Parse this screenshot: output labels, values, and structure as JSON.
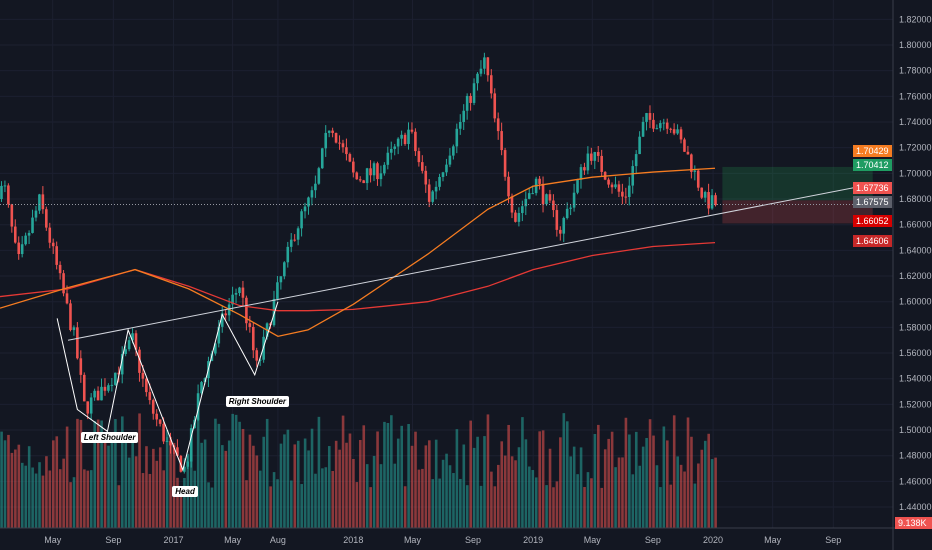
{
  "chart_data": {
    "type": "candlestick",
    "interval": "weekly",
    "price_axis": {
      "min": 1.44,
      "max": 1.82,
      "step": 0.02,
      "ticks": [
        "1.82000",
        "1.80000",
        "1.78000",
        "1.76000",
        "1.74000",
        "1.72000",
        "1.70000",
        "1.68000",
        "1.66000",
        "1.64000",
        "1.62000",
        "1.60000",
        "1.58000",
        "1.56000",
        "1.54000",
        "1.52000",
        "1.50000",
        "1.48000",
        "1.46000",
        "1.44000"
      ]
    },
    "time_axis": {
      "ticks": [
        {
          "label": "May",
          "date": "2016-05-01"
        },
        {
          "label": "Sep",
          "date": "2016-09-01"
        },
        {
          "label": "2017",
          "date": "2017-01-01"
        },
        {
          "label": "May",
          "date": "2017-05-01"
        },
        {
          "label": "Aug",
          "date": "2017-08-01"
        },
        {
          "label": "2018",
          "date": "2018-01-01"
        },
        {
          "label": "May",
          "date": "2018-05-01"
        },
        {
          "label": "Sep",
          "date": "2018-09-01"
        },
        {
          "label": "2019",
          "date": "2019-01-01"
        },
        {
          "label": "May",
          "date": "2019-05-01"
        },
        {
          "label": "Sep",
          "date": "2019-09-01"
        },
        {
          "label": "2020",
          "date": "2020-01-01"
        },
        {
          "label": "May",
          "date": "2020-05-01"
        },
        {
          "label": "Sep",
          "date": "2020-09-01"
        }
      ]
    },
    "close_path": [
      [
        "2016-01-25",
        1.687
      ],
      [
        "2016-02-20",
        1.629
      ],
      [
        "2016-04-05",
        1.679
      ],
      [
        "2016-06-15",
        1.57
      ],
      [
        "2016-07-05",
        1.516
      ],
      [
        "2016-09-10",
        1.547
      ],
      [
        "2016-10-10",
        1.57
      ],
      [
        "2016-11-10",
        1.523
      ],
      [
        "2016-12-25",
        1.484
      ],
      [
        "2017-01-25",
        1.469
      ],
      [
        "2017-02-25",
        1.535
      ],
      [
        "2017-04-15",
        1.59
      ],
      [
        "2017-05-15",
        1.613
      ],
      [
        "2017-06-20",
        1.547
      ],
      [
        "2017-07-25",
        1.601
      ],
      [
        "2017-09-05",
        1.656
      ],
      [
        "2017-10-15",
        1.687
      ],
      [
        "2017-11-15",
        1.741
      ],
      [
        "2018-01-05",
        1.695
      ],
      [
        "2018-02-25",
        1.703
      ],
      [
        "2018-04-25",
        1.734
      ],
      [
        "2018-06-05",
        1.679
      ],
      [
        "2018-08-15",
        1.749
      ],
      [
        "2018-09-25",
        1.788
      ],
      [
        "2018-10-15",
        1.741
      ],
      [
        "2018-11-25",
        1.664
      ],
      [
        "2019-01-05",
        1.695
      ],
      [
        "2019-02-25",
        1.656
      ],
      [
        "2019-04-25",
        1.718
      ],
      [
        "2019-07-05",
        1.679
      ],
      [
        "2019-08-15",
        1.741
      ],
      [
        "2019-10-05",
        1.741
      ],
      [
        "2019-11-15",
        1.71
      ],
      [
        "2019-12-15",
        1.679
      ],
      [
        "2020-01-05",
        1.676
      ]
    ],
    "ma_fast": [
      [
        "2016-01-15",
        1.595
      ],
      [
        "2016-06-01",
        1.611
      ],
      [
        "2016-10-15",
        1.625
      ],
      [
        "2017-02-01",
        1.61
      ],
      [
        "2017-05-15",
        1.59
      ],
      [
        "2017-08-01",
        1.573
      ],
      [
        "2017-10-01",
        1.578
      ],
      [
        "2018-01-01",
        1.598
      ],
      [
        "2018-06-01",
        1.637
      ],
      [
        "2018-10-01",
        1.672
      ],
      [
        "2019-01-01",
        1.69
      ],
      [
        "2019-05-01",
        1.697
      ],
      [
        "2019-09-01",
        1.701
      ],
      [
        "2020-01-05",
        1.704
      ]
    ],
    "ma_slow": [
      [
        "2016-01-15",
        1.604
      ],
      [
        "2016-06-01",
        1.61
      ],
      [
        "2016-10-15",
        1.625
      ],
      [
        "2017-02-01",
        1.612
      ],
      [
        "2017-05-15",
        1.597
      ],
      [
        "2017-08-01",
        1.593
      ],
      [
        "2017-10-01",
        1.593
      ],
      [
        "2018-01-01",
        1.594
      ],
      [
        "2018-06-01",
        1.6
      ],
      [
        "2018-10-01",
        1.612
      ],
      [
        "2019-01-01",
        1.625
      ],
      [
        "2019-05-01",
        1.636
      ],
      [
        "2019-09-01",
        1.643
      ],
      [
        "2020-01-05",
        1.646
      ]
    ],
    "trendline": [
      [
        "2016-06-01",
        1.57
      ],
      [
        "2020-12-01",
        1.6925
      ]
    ],
    "horizontal_line": 1.67575,
    "target_box": {
      "from": "2020-01-20",
      "to": "2020-11-20",
      "entry": 1.679,
      "target": 1.705,
      "stop": 1.661
    },
    "pattern": [
      [
        "2016-05-10",
        1.587
      ],
      [
        "2016-06-20",
        1.516
      ],
      [
        "2016-08-20",
        1.499
      ],
      [
        "2016-10-01",
        1.578
      ],
      [
        "2017-01-20",
        1.469
      ],
      [
        "2017-04-10",
        1.59
      ],
      [
        "2017-06-15",
        1.543
      ],
      [
        "2017-08-01",
        1.6
      ]
    ],
    "annotations": [
      {
        "text": "Left Shoulder",
        "date": "2016-08-25",
        "price": 1.494
      },
      {
        "text": "Head",
        "date": "2017-01-25",
        "price": 1.452
      },
      {
        "text": "Right Shoulder",
        "date": "2017-06-20",
        "price": 1.522
      }
    ],
    "price_badges": [
      {
        "value": "1.70429",
        "color": "#f57c21"
      },
      {
        "value": "1.70412",
        "color": "#1f9c62"
      },
      {
        "value": "1.67736",
        "color": "#ef5350"
      },
      {
        "value": "1.67575",
        "color": "#5d606b"
      },
      {
        "value": "1.66052",
        "color": "#d50000"
      },
      {
        "value": "1.64606",
        "color": "#c62828"
      }
    ],
    "volume_badge": {
      "value": "9.138K",
      "color": "#ef5350"
    },
    "colors": {
      "up": "#26a69a",
      "down": "#ef5350",
      "background": "#131722",
      "ma_fast": "#f57c21",
      "ma_slow": "#e53935"
    }
  }
}
